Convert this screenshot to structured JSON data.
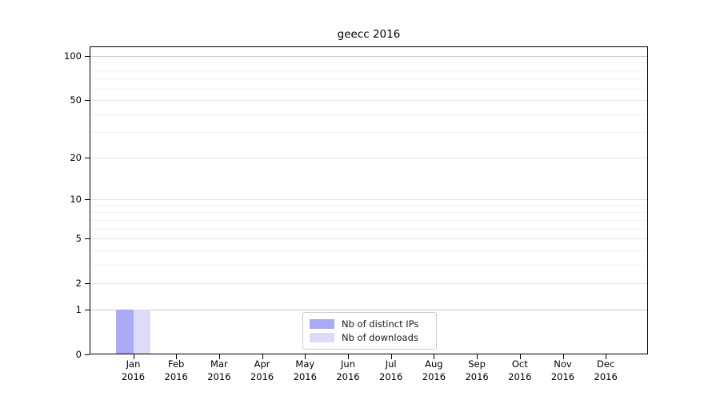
{
  "chart_data": {
    "type": "bar",
    "title": "geecc 2016",
    "categories": [
      "Jan",
      "Feb",
      "Mar",
      "Apr",
      "May",
      "Jun",
      "Jul",
      "Aug",
      "Sep",
      "Oct",
      "Nov",
      "Dec"
    ],
    "category_year": "2016",
    "series": [
      {
        "name": "Nb of distinct IPs",
        "color": "#aaaaf5",
        "values": [
          1,
          0,
          0,
          0,
          0,
          0,
          0,
          0,
          0,
          0,
          0,
          0
        ]
      },
      {
        "name": "Nb of downloads",
        "color": "#dcdcf8",
        "values": [
          1,
          0,
          0,
          0,
          0,
          0,
          0,
          0,
          0,
          0,
          0,
          0
        ]
      }
    ],
    "y_axis": {
      "scale": "log1p",
      "ticks": [
        0,
        1,
        2,
        5,
        10,
        20,
        50,
        100
      ],
      "minor_ticks": [
        3,
        4,
        6,
        7,
        8,
        9,
        30,
        40,
        60,
        70,
        80,
        90
      ],
      "range": [
        0,
        116
      ]
    },
    "grid": "horizontal",
    "legend_position": "lower center",
    "colors": {
      "axis": "#000000",
      "grid_strong": "#c9c9c9",
      "grid_mid": "#e4e4e4",
      "grid_minor": "#f1f1f1"
    }
  }
}
